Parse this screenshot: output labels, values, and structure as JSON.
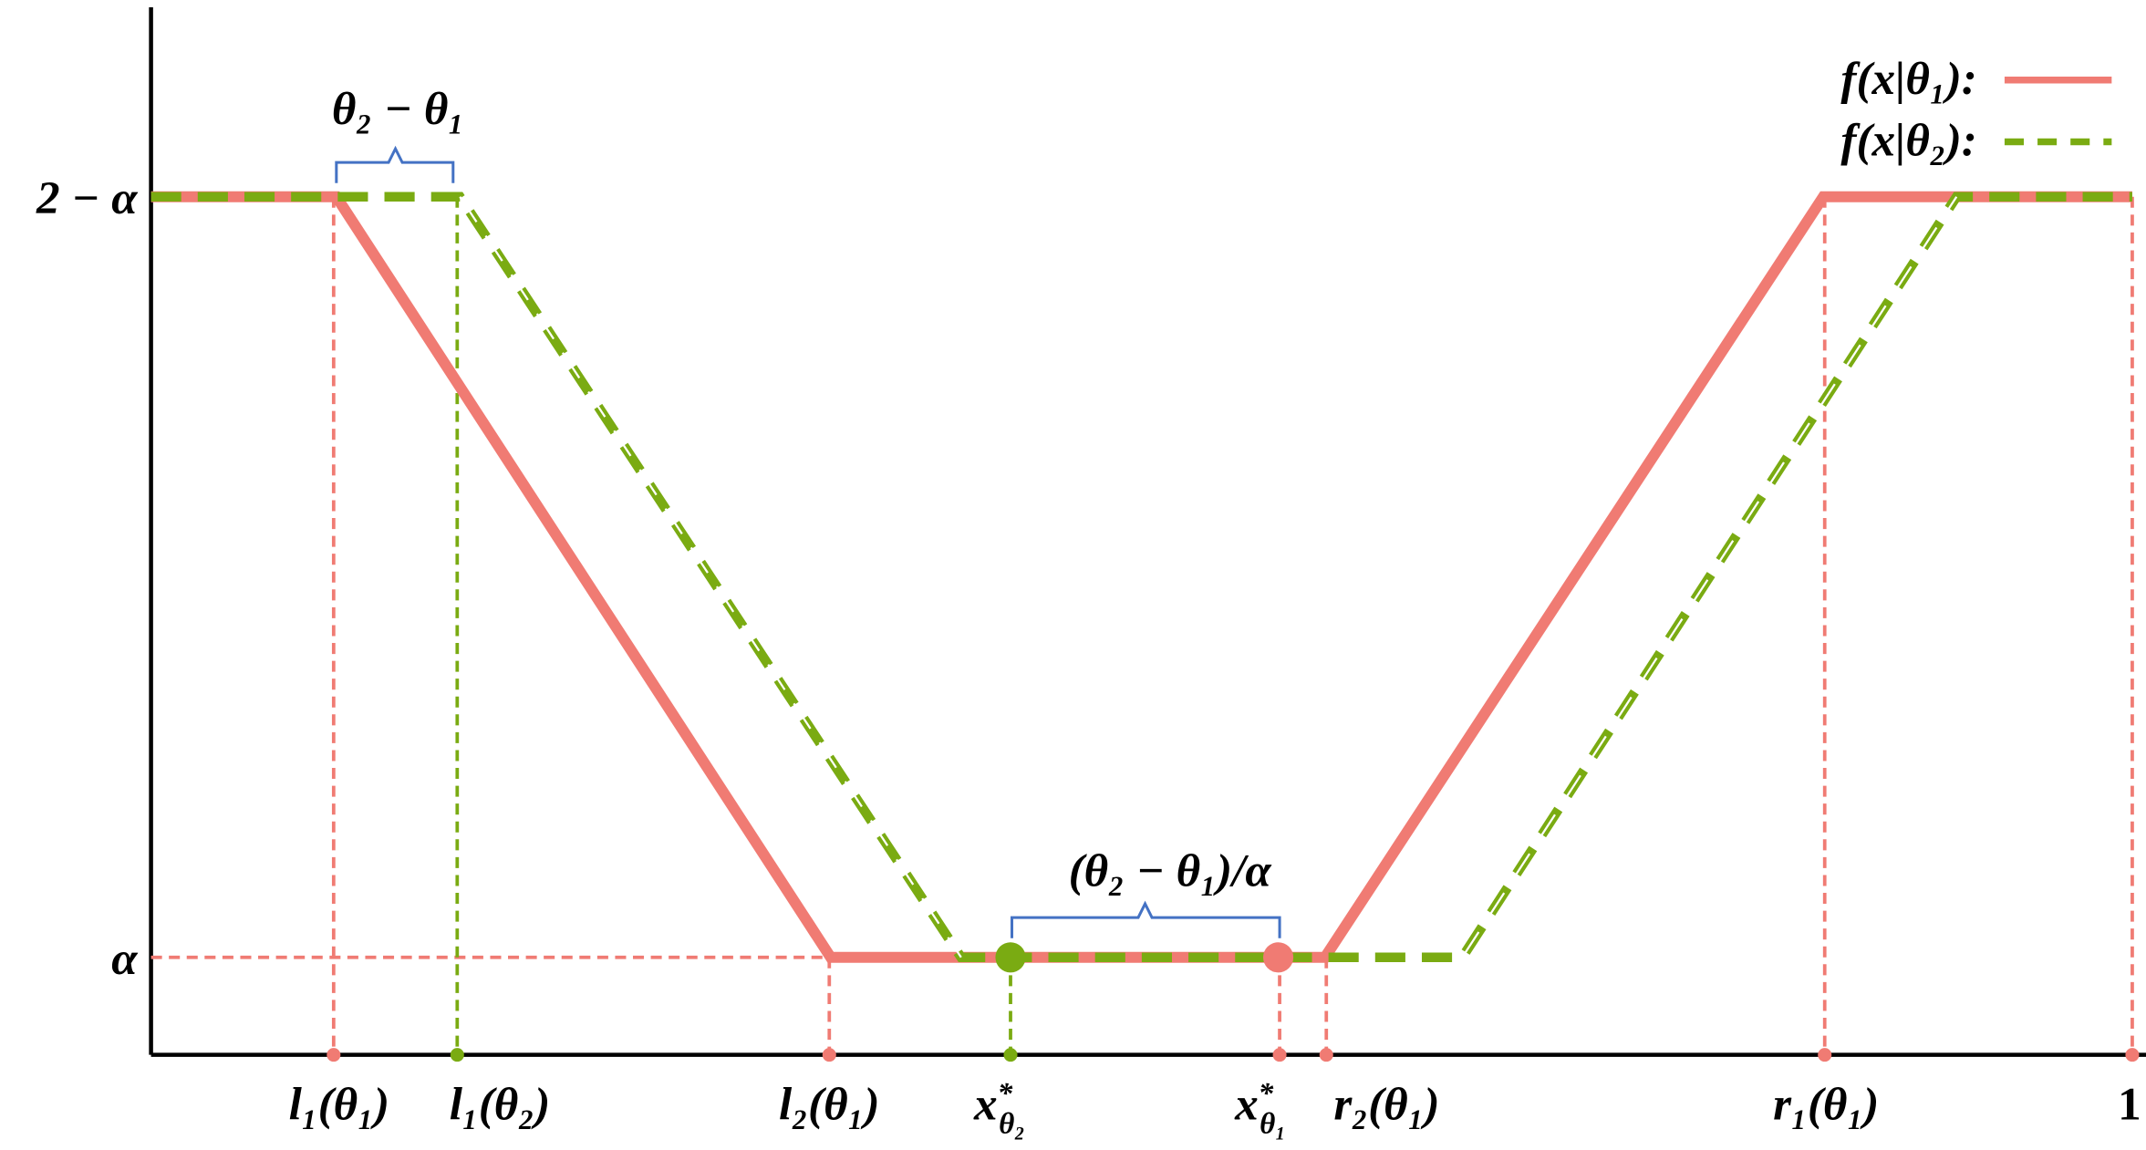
{
  "y_labels": [
    "2 − α",
    "α"
  ],
  "x_labels": [
    "l₁(θ₁)",
    "l₁(θ₂)",
    "l₂(θ₁)",
    {
      "base": "x",
      "sup": "*",
      "sub": "θ₂"
    },
    {
      "base": "x",
      "sup": "*",
      "sub": "θ₁"
    },
    "r₂(θ₁)",
    "r₁(θ₁)",
    "1"
  ],
  "braces": [
    "θ₂ − θ₁",
    "(θ₂ − θ₁)/α"
  ],
  "legend": [
    "f(x|θ₁):",
    "f(x|θ₂):"
  ]
}
